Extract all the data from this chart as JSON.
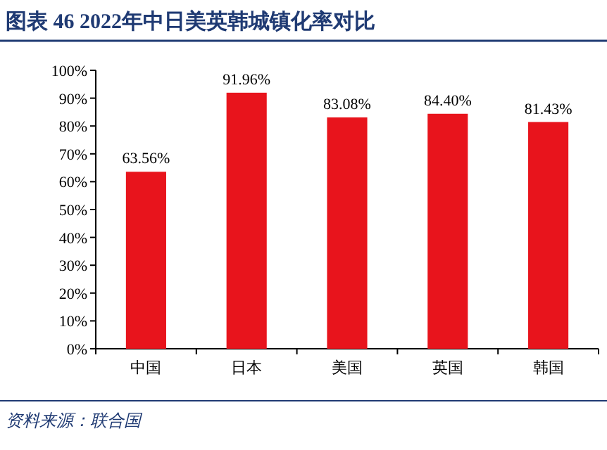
{
  "chart_data": {
    "type": "bar",
    "title": "图表 46   2022年中日美英韩城镇化率对比",
    "categories": [
      "中国",
      "日本",
      "美国",
      "英国",
      "韩国"
    ],
    "values": [
      63.56,
      91.96,
      83.08,
      84.4,
      81.43
    ],
    "value_labels": [
      "63.56%",
      "91.96%",
      "83.08%",
      "84.40%",
      "81.43%"
    ],
    "color": "#e8141c",
    "ylim": [
      0,
      100
    ],
    "yticks": [
      {
        "value": 0,
        "label": "0%"
      },
      {
        "value": 10,
        "label": "10%"
      },
      {
        "value": 20,
        "label": "20%"
      },
      {
        "value": 30,
        "label": "30%"
      },
      {
        "value": 40,
        "label": "40%"
      },
      {
        "value": 50,
        "label": "50%"
      },
      {
        "value": 60,
        "label": "60%"
      },
      {
        "value": 70,
        "label": "70%"
      },
      {
        "value": 80,
        "label": "80%"
      },
      {
        "value": 90,
        "label": "90%"
      },
      {
        "value": 100,
        "label": "100%"
      }
    ],
    "annotations": [
      "资料来源：联合国"
    ]
  }
}
